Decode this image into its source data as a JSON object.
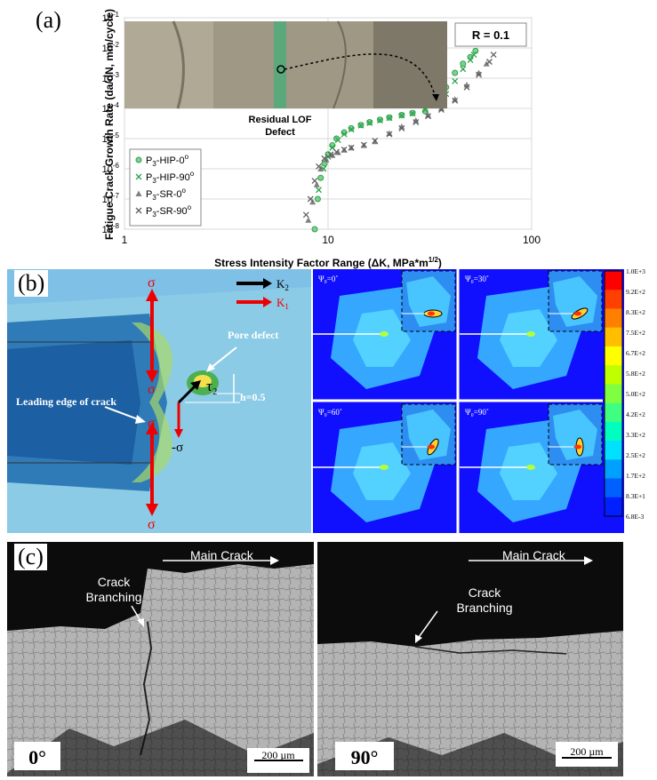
{
  "panels": {
    "a": "(a)",
    "b": "(b)",
    "c": "(c)"
  },
  "panel_a": {
    "ratio_label": "R = 0.1",
    "defect_label_1": "Residual LOF",
    "defect_label_2": "Defect",
    "ylabel": "Fatigue Crack Growth Rate (da/dN, mm/cycle)",
    "xlabel": "Stress Intensity Factor Range (ΔK, MPa*m",
    "xlabel_sup": "1/2",
    "xlabel_end": ")"
  },
  "chart_data": {
    "type": "scatter",
    "xscale": "log",
    "yscale": "log",
    "xlim": [
      1,
      100
    ],
    "ylim": [
      1e-08,
      0.1
    ],
    "xticks": [
      "1",
      "10",
      "100"
    ],
    "yticks": [
      "10-8",
      "10-7",
      "10-6",
      "10-5",
      "10-4",
      "10-3",
      "10-2",
      "10-1"
    ],
    "xlabel": "Stress Intensity Factor Range (ΔK, MPa*m1/2)",
    "ylabel": "Fatigue Crack Growth Rate (da/dN, mm/cycle)",
    "legend_position": "bottom-left",
    "series": [
      {
        "name": "P3-HIP-0°",
        "marker": "circle",
        "color": "#2ca24a",
        "x": [
          8.6,
          8.9,
          9.2,
          9.6,
          10.0,
          10.5,
          11.0,
          12.0,
          13.0,
          14.5,
          16.0,
          18.0,
          20.0,
          23.0,
          26.0,
          30.0,
          34.0,
          38.0,
          42.0,
          46.0,
          50.0,
          53.0
        ],
        "y": [
          1e-08,
          1e-07,
          5e-07,
          1.5e-06,
          3e-06,
          6e-06,
          1e-05,
          1.6e-05,
          2.2e-05,
          2.8e-05,
          3.5e-05,
          4.2e-05,
          5e-05,
          6e-05,
          7e-05,
          8e-05,
          0.00015,
          0.0005,
          0.0015,
          0.003,
          0.005,
          0.008
        ]
      },
      {
        "name": "P3-HIP-90°",
        "marker": "x",
        "color": "#2ca24a",
        "x": [
          9.0,
          9.5,
          10.0,
          10.5,
          11.2,
          12.0,
          13.0,
          14.5,
          16.0,
          18.0,
          20.0,
          23.0,
          26.0,
          30.0,
          34.0,
          38.0,
          42.0,
          46.0,
          50.0,
          52.0
        ],
        "y": [
          2e-07,
          1e-06,
          2.5e-06,
          5e-06,
          9e-06,
          1.4e-05,
          2e-05,
          2.7e-05,
          3.3e-05,
          4e-05,
          4.8e-05,
          5.8e-05,
          6.8e-05,
          9e-05,
          0.00014,
          0.0003,
          0.0008,
          0.002,
          0.004,
          0.006
        ]
      },
      {
        "name": "P3-SR-0°",
        "marker": "triangle",
        "color": "#808080",
        "x": [
          8.0,
          8.4,
          8.8,
          9.2,
          9.8,
          10.5,
          11.2,
          12.0,
          13.0,
          15.0,
          17.0,
          20.0,
          23.0,
          27.0,
          31.0,
          36.0,
          42.0,
          48.0,
          55.0,
          60.0
        ],
        "y": [
          2e-08,
          8e-08,
          3e-07,
          1e-06,
          2e-06,
          2.8e-06,
          3.5e-06,
          4.2e-06,
          5e-06,
          6e-06,
          8e-06,
          1.5e-05,
          2.5e-05,
          4e-05,
          6e-05,
          0.0001,
          0.0002,
          0.0006,
          0.0015,
          0.003
        ]
      },
      {
        "name": "P3-SR-90°",
        "marker": "x",
        "color": "#606060",
        "x": [
          7.8,
          8.2,
          8.6,
          9.0,
          9.6,
          10.3,
          11.0,
          12.0,
          13.0,
          15.0,
          17.0,
          20.0,
          23.0,
          27.0,
          31.0,
          36.0,
          42.0,
          48.0,
          55.0,
          62.0,
          65.0
        ],
        "y": [
          3e-08,
          1e-07,
          4e-07,
          1.2e-06,
          2.2e-06,
          3e-06,
          3.6e-06,
          4.3e-06,
          5e-06,
          6.2e-06,
          8.5e-06,
          1.4e-05,
          2.2e-05,
          3.5e-05,
          5.5e-05,
          9e-05,
          0.00018,
          0.0005,
          0.0013,
          0.0035,
          0.006
        ]
      }
    ]
  },
  "panel_b": {
    "legend_k2": "K",
    "legend_k2_sub": "2",
    "legend_k1": "K",
    "legend_k1_sub": "1",
    "sigma": "σ",
    "neg_sigma": "-σ",
    "tau": "τ",
    "tau_sub": "2",
    "h_label": "h=0.5",
    "pore_label": "Pore defect",
    "leading_edge_label": "Leading edge of crack",
    "psi_labels": [
      "Ψ₀=0˚",
      "Ψ₀=30˚",
      "Ψ₀=60˚",
      "Ψ₀=90˚"
    ],
    "colorbar_labels": [
      "1.0E+3",
      "9.2E+2",
      "8.3E+2",
      "7.5E+2",
      "6.7E+2",
      "5.8E+2",
      "5.0E+2",
      "4.2E+2",
      "3.3E+2",
      "2.5E+2",
      "1.7E+2",
      "8.3E+1",
      "6.8E-3"
    ],
    "colorbar_colors": [
      "#ff0000",
      "#ff4000",
      "#ff8000",
      "#ffbf00",
      "#ffff00",
      "#bfff00",
      "#80ff40",
      "#40ff80",
      "#00ffbf",
      "#00e0ff",
      "#00a0ff",
      "#0060ff",
      "#0020ff"
    ]
  },
  "panel_c": {
    "left": {
      "main_crack": "Main Crack",
      "branch_1": "Crack",
      "branch_2": "Branching",
      "angle": "0°",
      "scale": "200 µm"
    },
    "right": {
      "main_crack": "Main Crack",
      "branch_1": "Crack",
      "branch_2": "Branching",
      "angle": "90°",
      "scale": "200 µm"
    }
  }
}
